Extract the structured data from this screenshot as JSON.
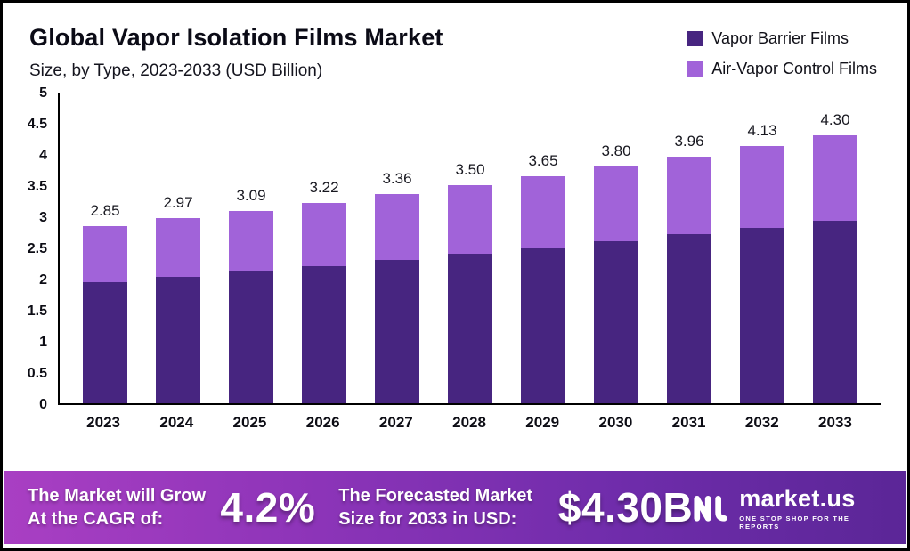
{
  "header": {
    "title": "Global Vapor Isolation Films Market",
    "subtitle": "Size, by Type, 2023-2033 (USD Billion)"
  },
  "legend": [
    {
      "label": "Vapor Barrier Films",
      "color": "#472580"
    },
    {
      "label": "Air-Vapor Control Films",
      "color": "#a163d9"
    }
  ],
  "chart_data": {
    "type": "bar",
    "stacked": true,
    "title": "Global Vapor Isolation Films Market Size, by Type, 2023-2033 (USD Billion)",
    "categories": [
      "2023",
      "2024",
      "2025",
      "2026",
      "2027",
      "2028",
      "2029",
      "2030",
      "2031",
      "2032",
      "2033"
    ],
    "series": [
      {
        "name": "Vapor Barrier Films",
        "color": "#472580",
        "values": [
          1.95,
          2.03,
          2.11,
          2.2,
          2.3,
          2.4,
          2.49,
          2.6,
          2.71,
          2.81,
          2.93
        ]
      },
      {
        "name": "Air-Vapor Control Films",
        "color": "#a163d9",
        "values": [
          0.9,
          0.94,
          0.98,
          1.02,
          1.06,
          1.1,
          1.16,
          1.2,
          1.25,
          1.32,
          1.37
        ]
      }
    ],
    "totals": [
      "2.85",
      "2.97",
      "3.09",
      "3.22",
      "3.36",
      "3.50",
      "3.65",
      "3.80",
      "3.96",
      "4.13",
      "4.30"
    ],
    "ylim": [
      0,
      5
    ],
    "yticks": [
      "5",
      "4.5",
      "4",
      "3.5",
      "3",
      "2.5",
      "2",
      "1.5",
      "1",
      "0.5",
      "0"
    ],
    "grid": false,
    "legend_position": "top-right",
    "unit": "USD Billion"
  },
  "footer": {
    "cagr_label": "The Market will Grow At the CAGR of:",
    "cagr_value": "4.2%",
    "forecast_label": "The Forecasted Market Size for 2033 in USD:",
    "forecast_value": "$4.30B",
    "brand": {
      "name": "market.us",
      "tagline": "One Stop Shop For The Reports"
    }
  }
}
